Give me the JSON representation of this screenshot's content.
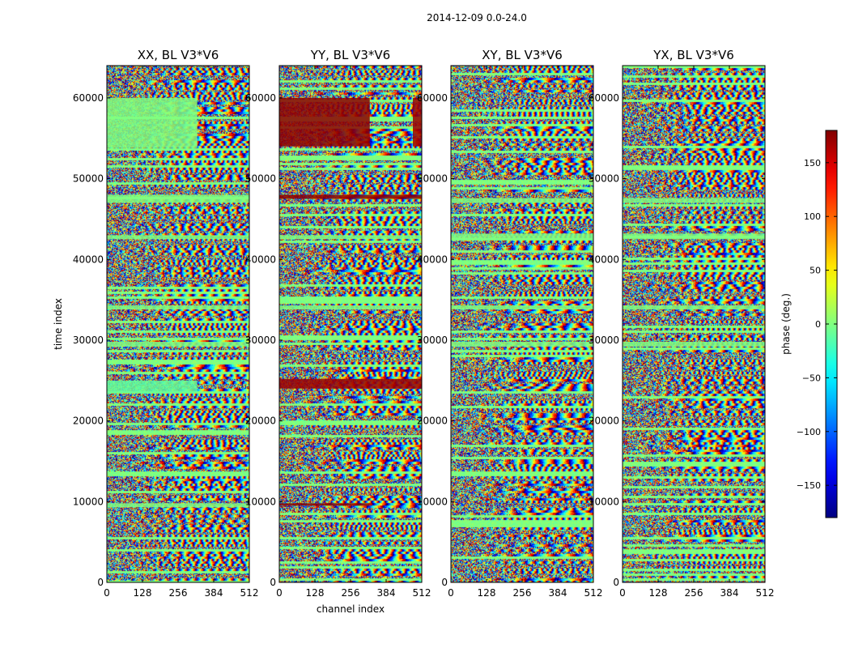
{
  "figure": {
    "suptitle": "2014-12-09 0.0-24.0"
  },
  "chart_data": [
    {
      "type": "heatmap",
      "title": "XX, BL V3*V6",
      "xlabel": "",
      "ylabel": "time index",
      "xlim": [
        0,
        512
      ],
      "ylim": [
        0,
        64000
      ],
      "xticks": [
        0,
        128,
        256,
        384,
        512
      ],
      "yticks": [
        0,
        10000,
        20000,
        30000,
        40000,
        50000,
        60000
      ],
      "value": "phase (deg.)",
      "bands": [
        {
          "y": [
            53800,
            60000
          ],
          "x": [
            0,
            325
          ],
          "phase": 0
        },
        {
          "y": [
            23500,
            25000
          ],
          "x": [
            0,
            325
          ],
          "phase": -10
        },
        {
          "y": [
            47000,
            48000
          ],
          "x": [
            0,
            512
          ],
          "phase": 0
        },
        {
          "y": [
            42500,
            43000
          ],
          "x": [
            0,
            512
          ],
          "phase": 0
        },
        {
          "y": [
            33800,
            34300
          ],
          "x": [
            0,
            512
          ],
          "phase": 0
        },
        {
          "y": [
            29200,
            29800
          ],
          "x": [
            0,
            512
          ],
          "phase": 0
        },
        {
          "y": [
            9300,
            9800
          ],
          "x": [
            0,
            512
          ],
          "phase": 0
        }
      ]
    },
    {
      "type": "heatmap",
      "title": "YY, BL V3*V6",
      "xlabel": "channel index",
      "ylabel": "",
      "xlim": [
        0,
        512
      ],
      "ylim": [
        0,
        64000
      ],
      "xticks": [
        0,
        128,
        256,
        384,
        512
      ],
      "yticks": [
        0,
        10000,
        20000,
        30000,
        40000,
        50000,
        60000
      ],
      "value": "phase (deg.)",
      "bands": [
        {
          "y": [
            54000,
            60000
          ],
          "x": [
            0,
            325
          ],
          "phase": 175
        },
        {
          "y": [
            54000,
            60000
          ],
          "x": [
            480,
            512
          ],
          "phase": 170
        },
        {
          "y": [
            24000,
            25200
          ],
          "x": [
            0,
            512
          ],
          "phase": 170
        },
        {
          "y": [
            47500,
            48000
          ],
          "x": [
            0,
            512
          ],
          "phase": 175
        },
        {
          "y": [
            9500,
            9800
          ],
          "x": [
            0,
            325
          ],
          "phase": 175
        },
        {
          "y": [
            42500,
            43000
          ],
          "x": [
            0,
            512
          ],
          "phase": 0
        },
        {
          "y": [
            33800,
            34300
          ],
          "x": [
            0,
            512
          ],
          "phase": 0
        }
      ]
    },
    {
      "type": "heatmap",
      "title": "XY, BL V3*V6",
      "xlabel": "",
      "ylabel": "",
      "xlim": [
        0,
        512
      ],
      "ylim": [
        0,
        64000
      ],
      "xticks": [
        0,
        128,
        256,
        384,
        512
      ],
      "yticks": [
        0,
        10000,
        20000,
        30000,
        40000,
        50000,
        60000
      ],
      "value": "phase (deg.)",
      "bands": [
        {
          "y": [
            42500,
            43200
          ],
          "x": [
            0,
            512
          ],
          "phase": 0
        },
        {
          "y": [
            33800,
            34300
          ],
          "x": [
            0,
            512
          ],
          "phase": 0
        },
        {
          "y": [
            29200,
            29800
          ],
          "x": [
            0,
            512
          ],
          "phase": 0
        },
        {
          "y": [
            47000,
            47600
          ],
          "x": [
            0,
            512
          ],
          "phase": 0
        }
      ]
    },
    {
      "type": "heatmap",
      "title": "YX, BL V3*V6",
      "xlabel": "",
      "ylabel": "",
      "xlim": [
        0,
        512
      ],
      "ylim": [
        0,
        64000
      ],
      "xticks": [
        0,
        128,
        256,
        384,
        512
      ],
      "yticks": [
        0,
        10000,
        20000,
        30000,
        40000,
        50000,
        60000
      ],
      "value": "phase (deg.)",
      "bands": [
        {
          "y": [
            42500,
            43200
          ],
          "x": [
            0,
            512
          ],
          "phase": 0
        },
        {
          "y": [
            33800,
            34300
          ],
          "x": [
            0,
            512
          ],
          "phase": 0
        },
        {
          "y": [
            29200,
            29800
          ],
          "x": [
            0,
            512
          ],
          "phase": 0
        },
        {
          "y": [
            47000,
            47600
          ],
          "x": [
            0,
            512
          ],
          "phase": 0
        }
      ]
    }
  ],
  "colorbar": {
    "label": "phase (deg.)",
    "range": [
      -180,
      180
    ],
    "ticks": [
      -150,
      -100,
      -50,
      0,
      50,
      100,
      150
    ],
    "colormap": "jet",
    "colors": [
      "#00007f",
      "#0000ff",
      "#00ffff",
      "#7fff7f",
      "#ffff00",
      "#ff0000",
      "#7f0000"
    ]
  }
}
